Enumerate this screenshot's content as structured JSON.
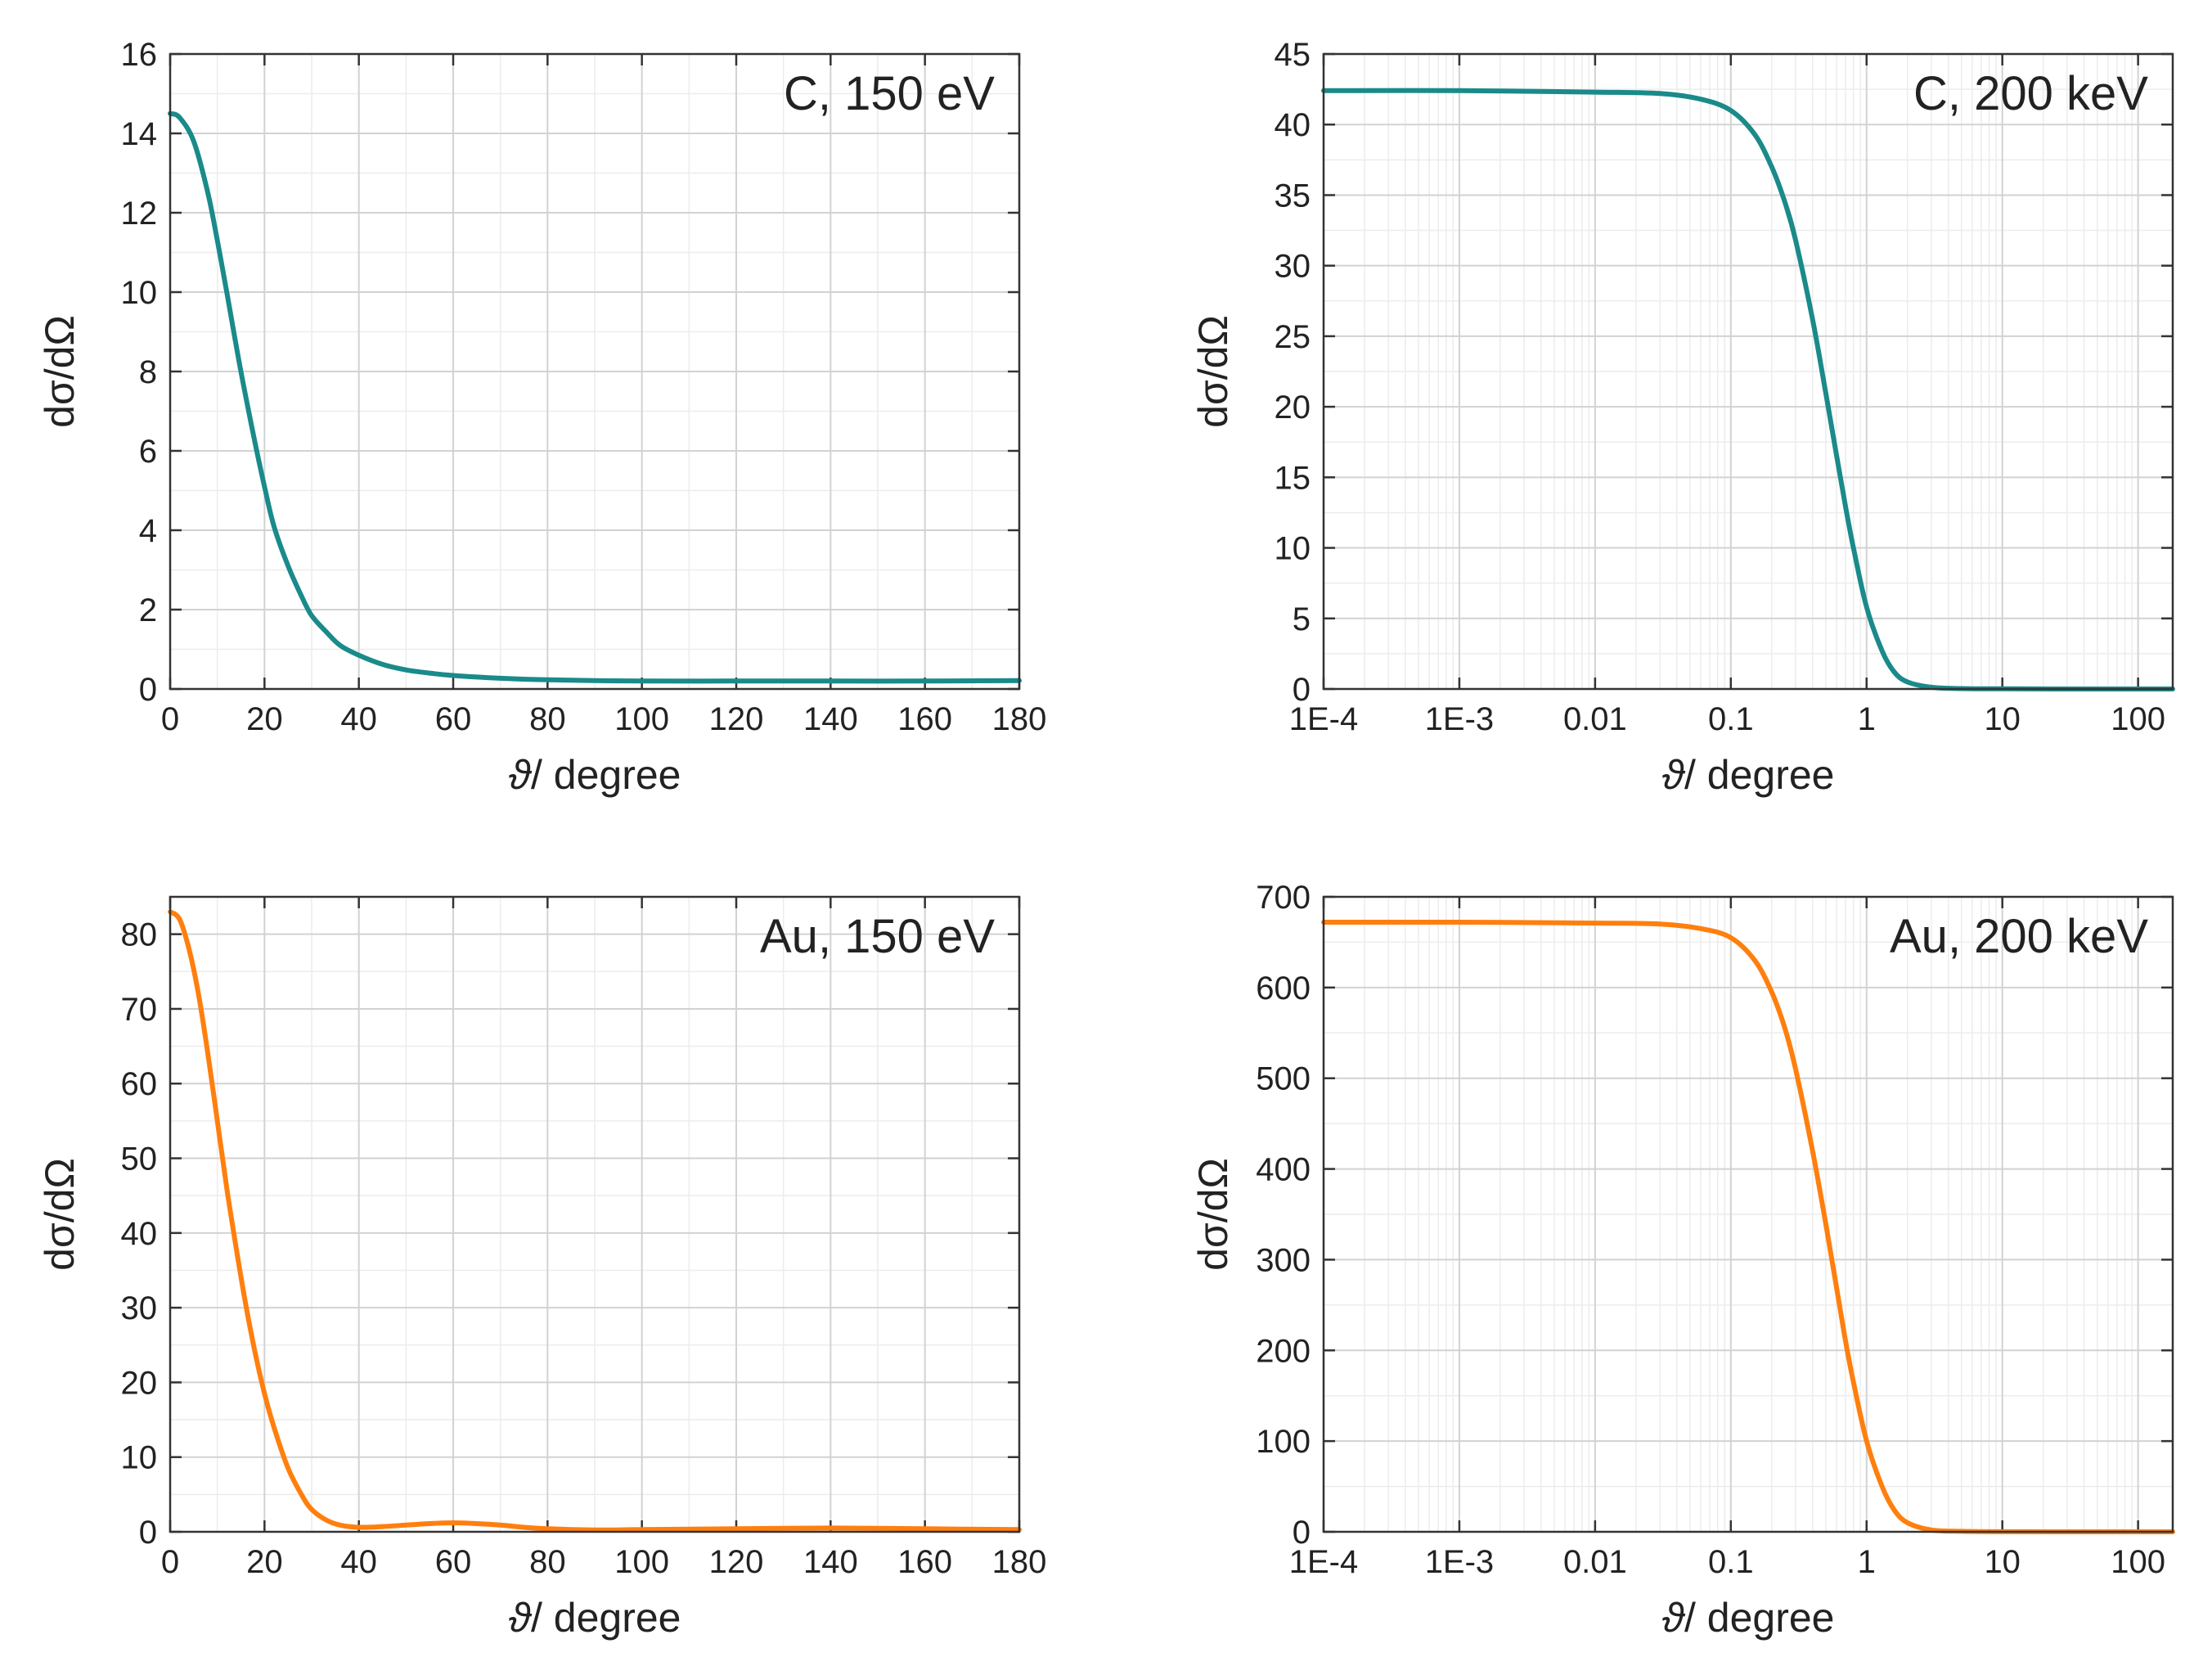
{
  "chart_data": [
    {
      "type": "line",
      "xscale": "linear",
      "annotation": "C, 150 eV",
      "xlabel_symbol": "ϑ",
      "xlabel": "/ degree",
      "ylabel": "dσ/dΩ",
      "xlim": [
        0,
        180
      ],
      "ylim": [
        0,
        16
      ],
      "xticks": [
        0,
        20,
        40,
        60,
        80,
        100,
        120,
        140,
        160,
        180
      ],
      "xtick_labels": [
        "0",
        "20",
        "40",
        "60",
        "80",
        "100",
        "120",
        "140",
        "160",
        "180"
      ],
      "yticks": [
        0,
        2,
        4,
        6,
        8,
        10,
        12,
        14,
        16
      ],
      "ytick_labels": [
        "0",
        "2",
        "4",
        "6",
        "8",
        "10",
        "12",
        "14",
        "16"
      ],
      "grid": true,
      "color": "#1a8a8a",
      "series": [
        {
          "name": "C, 150 eV",
          "x": [
            0,
            2,
            5,
            8,
            10,
            12,
            15,
            18,
            20,
            22,
            25,
            28,
            30,
            33,
            36,
            40,
            45,
            50,
            55,
            60,
            70,
            80,
            90,
            100,
            120,
            140,
            160,
            180
          ],
          "y": [
            14.5,
            14.4,
            13.8,
            12.5,
            11.3,
            10.0,
            8.0,
            6.2,
            5.1,
            4.1,
            3.1,
            2.3,
            1.85,
            1.45,
            1.1,
            0.85,
            0.62,
            0.48,
            0.4,
            0.34,
            0.27,
            0.23,
            0.21,
            0.2,
            0.2,
            0.2,
            0.2,
            0.21
          ]
        }
      ]
    },
    {
      "type": "line",
      "xscale": "log",
      "annotation": "C, 200 keV",
      "xlabel_symbol": "ϑ",
      "xlabel": "/ degree",
      "ylabel": "dσ/dΩ",
      "xlim": [
        0.0001,
        180
      ],
      "ylim": [
        0,
        45
      ],
      "xticks": [
        0.0001,
        0.001,
        0.01,
        0.1,
        1,
        10,
        100
      ],
      "xtick_labels": [
        "1E-4",
        "1E-3",
        "0.01",
        "0.1",
        "1",
        "10",
        "100"
      ],
      "yticks": [
        0,
        5,
        10,
        15,
        20,
        25,
        30,
        35,
        40,
        45
      ],
      "ytick_labels": [
        "0",
        "5",
        "10",
        "15",
        "20",
        "25",
        "30",
        "35",
        "40",
        "45"
      ],
      "grid": true,
      "color": "#1a8a8a",
      "series": [
        {
          "name": "C, 200 keV",
          "x": [
            0.0001,
            0.001,
            0.01,
            0.03,
            0.06,
            0.1,
            0.15,
            0.2,
            0.25,
            0.3,
            0.4,
            0.5,
            0.6,
            0.7,
            0.8,
            1.0,
            1.3,
            1.6,
            2.0,
            3.0,
            5.0,
            10,
            50,
            180
          ],
          "y": [
            42.4,
            42.4,
            42.3,
            42.2,
            41.8,
            41.0,
            39.3,
            37.0,
            34.5,
            31.8,
            26.2,
            21.0,
            16.6,
            12.9,
            10.0,
            5.8,
            2.7,
            1.2,
            0.5,
            0.12,
            0.03,
            0.01,
            0,
            0
          ]
        }
      ]
    },
    {
      "type": "line",
      "xscale": "linear",
      "annotation": "Au, 150 eV",
      "xlabel_symbol": "ϑ",
      "xlabel": "/ degree",
      "ylabel": "dσ/dΩ",
      "xlim": [
        0,
        180
      ],
      "ylim": [
        0,
        85
      ],
      "xticks": [
        0,
        20,
        40,
        60,
        80,
        100,
        120,
        140,
        160,
        180
      ],
      "xtick_labels": [
        "0",
        "20",
        "40",
        "60",
        "80",
        "100",
        "120",
        "140",
        "160",
        "180"
      ],
      "yticks": [
        0,
        10,
        20,
        30,
        40,
        50,
        60,
        70,
        80
      ],
      "ytick_labels": [
        "0",
        "10",
        "20",
        "30",
        "40",
        "50",
        "60",
        "70",
        "80"
      ],
      "grid": true,
      "color": "#ff7f0e",
      "series": [
        {
          "name": "Au, 150 eV",
          "x": [
            0,
            2,
            4,
            6,
            8,
            10,
            12,
            14,
            16,
            18,
            20,
            22,
            25,
            28,
            30,
            33,
            36,
            40,
            45,
            50,
            55,
            60,
            65,
            70,
            75,
            80,
            90,
            100,
            120,
            140,
            160,
            180
          ],
          "y": [
            83,
            82,
            78,
            72,
            64,
            55,
            46,
            38,
            30.5,
            24,
            18.5,
            14,
            8.5,
            4.8,
            3.0,
            1.6,
            0.9,
            0.6,
            0.7,
            0.9,
            1.1,
            1.2,
            1.1,
            0.9,
            0.6,
            0.4,
            0.25,
            0.3,
            0.4,
            0.5,
            0.4,
            0.3
          ]
        }
      ]
    },
    {
      "type": "line",
      "xscale": "log",
      "annotation": "Au, 200 keV",
      "xlabel_symbol": "ϑ",
      "xlabel": "/ degree",
      "ylabel": "dσ/dΩ",
      "xlim": [
        0.0001,
        180
      ],
      "ylim": [
        0,
        700
      ],
      "xticks": [
        0.0001,
        0.001,
        0.01,
        0.1,
        1,
        10,
        100
      ],
      "xtick_labels": [
        "1E-4",
        "1E-3",
        "0.01",
        "0.1",
        "1",
        "10",
        "100"
      ],
      "yticks": [
        0,
        100,
        200,
        300,
        400,
        500,
        600,
        700
      ],
      "ytick_labels": [
        "0",
        "100",
        "200",
        "300",
        "400",
        "500",
        "600",
        "700"
      ],
      "grid": true,
      "color": "#ff7f0e",
      "series": [
        {
          "name": "Au, 200 keV",
          "x": [
            0.0001,
            0.001,
            0.01,
            0.03,
            0.06,
            0.1,
            0.15,
            0.2,
            0.25,
            0.3,
            0.4,
            0.5,
            0.6,
            0.7,
            0.8,
            1.0,
            1.3,
            1.6,
            2.0,
            3.0,
            5.0,
            10,
            50,
            180
          ],
          "y": [
            672,
            672,
            671,
            670,
            665,
            655,
            630,
            595,
            555,
            510,
            420,
            340,
            270,
            210,
            165,
            100,
            50,
            24,
            10,
            2,
            0.5,
            0.1,
            0,
            0
          ]
        }
      ]
    }
  ]
}
